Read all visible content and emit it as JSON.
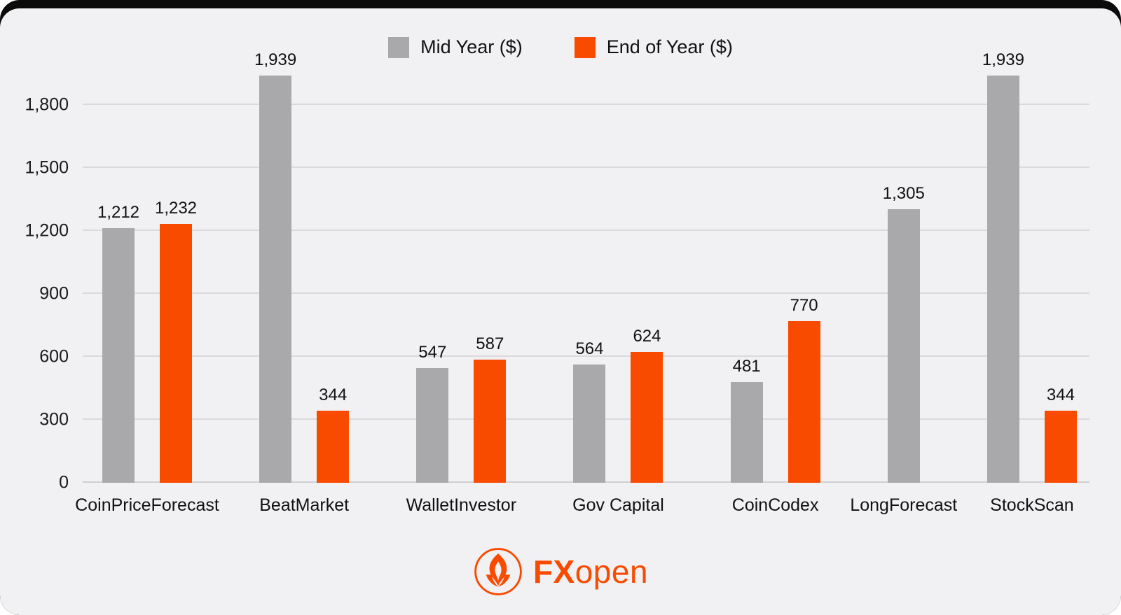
{
  "chart_data": {
    "type": "bar",
    "categories": [
      "CoinPriceForecast",
      "BeatMarket",
      "WalletInvestor",
      "Gov Capital",
      "CoinCodex",
      "LongForecast",
      "StockScan"
    ],
    "series": [
      {
        "name": "Mid Year ($)",
        "color": "#a9a9ab",
        "values": [
          1212,
          1939,
          547,
          564,
          481,
          1305,
          1939
        ]
      },
      {
        "name": "End of Year ($)",
        "color": "#f94b00",
        "values": [
          1232,
          344,
          587,
          624,
          770,
          null,
          344
        ]
      }
    ],
    "title": "",
    "xlabel": "",
    "ylabel": "",
    "yticks": [
      0,
      300,
      600,
      900,
      1200,
      1500,
      1800
    ],
    "ylim": [
      0,
      2000
    ],
    "grid": true,
    "legend_position": "top-center"
  },
  "legend": {
    "mid_year_label": "Mid Year ($)",
    "end_year_label": "End of Year ($)"
  },
  "colors": {
    "mid_year": "#a9a9ab",
    "end_year": "#f94b00",
    "background": "#f1f1f4",
    "brand_orange": "#f94b00"
  },
  "logo": {
    "brand_fx": "FX",
    "brand_open": "open"
  }
}
